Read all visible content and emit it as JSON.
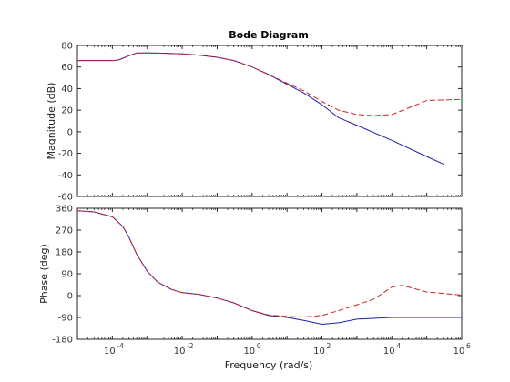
{
  "chart_data": {
    "type": "line",
    "title": "Bode Diagram",
    "xlabel": "Frequency  (rad/s)",
    "x_scale": "log",
    "xlim": [
      1e-05,
      1000000
    ],
    "x_ticks": [
      "10",
      "10",
      "10",
      "10",
      "10",
      "10"
    ],
    "x_tick_exponents": [
      "-4",
      "-2",
      "0",
      "2",
      "4",
      "6"
    ],
    "x_tick_values": [
      0.0001,
      0.01,
      1,
      100,
      10000,
      1000000
    ],
    "grid": false,
    "colors": {
      "solid": "#2020a8",
      "dashed": "#d42020",
      "frame": "#262626"
    },
    "panels": [
      {
        "name": "magnitude",
        "ylabel": "Magnitude (dB)",
        "ylim": [
          -60,
          80
        ],
        "y_ticks": [
          "80",
          "60",
          "40",
          "20",
          "0",
          "-20",
          "-40",
          "-60"
        ],
        "y_tick_values": [
          80,
          60,
          40,
          20,
          0,
          -20,
          -40,
          -60
        ],
        "series": [
          {
            "style": "solid",
            "x": [
              1e-05,
              0.0001,
              0.00015,
              0.0003,
              0.0005,
              0.001,
              0.003,
              0.01,
              0.03,
              0.1,
              0.3,
              1,
              3,
              10,
              30,
              100,
              300,
              1000,
              10000,
              100000,
              300000
            ],
            "y": [
              66,
              66,
              66.5,
              70.5,
              73,
              73,
              72.8,
              72.2,
              71,
              69,
              66,
              60,
              53,
              44,
              36,
              25,
              13,
              6,
              -8,
              -23,
              -30
            ]
          },
          {
            "style": "dashed",
            "x": [
              1e-05,
              0.0001,
              0.00015,
              0.0003,
              0.0005,
              0.001,
              0.003,
              0.01,
              0.03,
              0.1,
              0.3,
              1,
              3,
              10,
              30,
              100,
              300,
              1000,
              3000,
              10000,
              30000,
              100000,
              1000000
            ],
            "y": [
              66,
              66,
              66.5,
              70.5,
              73,
              73,
              72.8,
              72.2,
              71,
              69,
              66,
              60,
              53,
              45,
              38,
              28,
              20,
              16,
              15,
              16,
              22,
              29,
              30
            ]
          }
        ]
      },
      {
        "name": "phase",
        "ylabel": "Phase (deg)",
        "ylim": [
          -180,
          360
        ],
        "y_ticks": [
          "360",
          "270",
          "180",
          "90",
          "0",
          "-90",
          "-180"
        ],
        "y_tick_values": [
          360,
          270,
          180,
          90,
          0,
          -90,
          -180
        ],
        "series": [
          {
            "style": "solid",
            "x": [
              1e-05,
              3e-05,
              0.0001,
              0.0002,
              0.0003,
              0.0005,
              0.001,
              0.002,
              0.005,
              0.01,
              0.03,
              0.1,
              0.3,
              1,
              3,
              10,
              30,
              100,
              300,
              1000,
              10000,
              100000,
              1000000
            ],
            "y": [
              350,
              345,
              325,
              285,
              240,
              170,
              100,
              55,
              25,
              12,
              5,
              -10,
              -30,
              -62,
              -82,
              -90,
              -102,
              -118,
              -112,
              -97,
              -90,
              -90,
              -90
            ]
          },
          {
            "style": "dashed",
            "x": [
              1e-05,
              3e-05,
              0.0001,
              0.0002,
              0.0003,
              0.0005,
              0.001,
              0.002,
              0.005,
              0.01,
              0.03,
              0.1,
              0.3,
              1,
              3,
              10,
              30,
              100,
              300,
              1000,
              3000,
              10000,
              20000,
              100000,
              1000000
            ],
            "y": [
              350,
              345,
              325,
              285,
              240,
              170,
              100,
              55,
              25,
              12,
              5,
              -10,
              -30,
              -62,
              -80,
              -86,
              -88,
              -82,
              -62,
              -38,
              -15,
              35,
              42,
              15,
              2
            ]
          }
        ]
      }
    ]
  }
}
